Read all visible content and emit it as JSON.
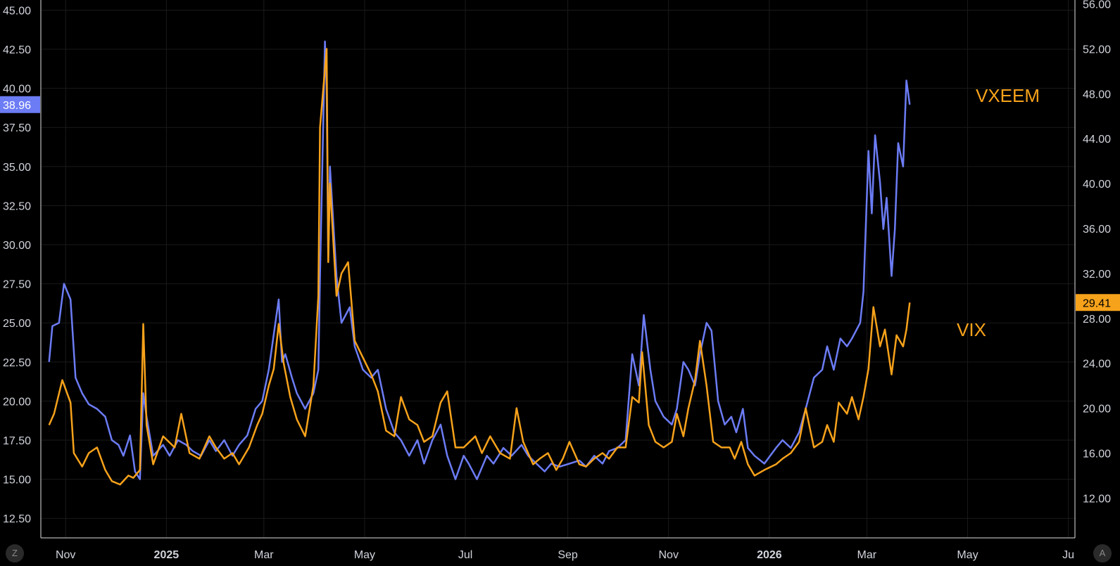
{
  "chart_data": {
    "type": "line",
    "title": "",
    "x_ticks": [
      "Nov",
      "2025",
      "Mar",
      "May",
      "Jul",
      "Sep",
      "Nov",
      "2026",
      "Mar",
      "May",
      "Ju"
    ],
    "left_axis": {
      "ticks": [
        "45.00",
        "42.50",
        "40.00",
        "37.50",
        "35.00",
        "32.50",
        "30.00",
        "27.50",
        "25.00",
        "22.50",
        "20.00",
        "17.50",
        "15.00",
        "12.50"
      ],
      "ylim": [
        11.25,
        45.65
      ]
    },
    "right_axis": {
      "ticks": [
        "56.00",
        "52.00",
        "48.00",
        "44.00",
        "40.00",
        "36.00",
        "32.00",
        "28.00",
        "24.00",
        "20.00",
        "16.00",
        "12.00"
      ],
      "ylim": [
        8.45,
        56.35
      ]
    },
    "series": [
      {
        "name": "VXEEM",
        "axis": "left",
        "color": "#6c7cf5",
        "last_value": "38.96",
        "points": [
          [
            "2024-10-22",
            22.5
          ],
          [
            "2024-10-24",
            24.8
          ],
          [
            "2024-10-28",
            25.0
          ],
          [
            "2024-10-31",
            27.5
          ],
          [
            "2024-11-04",
            26.5
          ],
          [
            "2024-11-07",
            21.5
          ],
          [
            "2024-11-11",
            20.5
          ],
          [
            "2024-11-15",
            19.8
          ],
          [
            "2024-11-20",
            19.5
          ],
          [
            "2024-11-25",
            19.0
          ],
          [
            "2024-11-29",
            17.5
          ],
          [
            "2024-12-03",
            17.2
          ],
          [
            "2024-12-06",
            16.5
          ],
          [
            "2024-12-10",
            17.8
          ],
          [
            "2024-12-13",
            15.5
          ],
          [
            "2024-12-16",
            15.0
          ],
          [
            "2024-12-18",
            20.5
          ],
          [
            "2024-12-20",
            19.0
          ],
          [
            "2024-12-24",
            16.5
          ],
          [
            "2024-12-30",
            17.2
          ],
          [
            "2025-01-03",
            16.5
          ],
          [
            "2025-01-08",
            17.5
          ],
          [
            "2025-01-13",
            17.2
          ],
          [
            "2025-01-17",
            16.8
          ],
          [
            "2025-01-22",
            16.5
          ],
          [
            "2025-01-27",
            17.5
          ],
          [
            "2025-01-31",
            16.8
          ],
          [
            "2025-02-05",
            17.5
          ],
          [
            "2025-02-10",
            16.5
          ],
          [
            "2025-02-14",
            17.2
          ],
          [
            "2025-02-19",
            17.8
          ],
          [
            "2025-02-24",
            19.5
          ],
          [
            "2025-02-28",
            20.0
          ],
          [
            "2025-03-04",
            22.0
          ],
          [
            "2025-03-06",
            23.5
          ],
          [
            "2025-03-10",
            26.5
          ],
          [
            "2025-03-12",
            22.5
          ],
          [
            "2025-03-14",
            23.0
          ],
          [
            "2025-03-18",
            21.5
          ],
          [
            "2025-03-21",
            20.5
          ],
          [
            "2025-03-26",
            19.5
          ],
          [
            "2025-03-31",
            20.5
          ],
          [
            "2025-04-03",
            22.0
          ],
          [
            "2025-04-04",
            28.0
          ],
          [
            "2025-04-07",
            43.0
          ],
          [
            "2025-04-08",
            40.0
          ],
          [
            "2025-04-09",
            29.0
          ],
          [
            "2025-04-10",
            35.0
          ],
          [
            "2025-04-14",
            28.0
          ],
          [
            "2025-04-17",
            25.0
          ],
          [
            "2025-04-22",
            26.0
          ],
          [
            "2025-04-25",
            23.5
          ],
          [
            "2025-04-30",
            22.0
          ],
          [
            "2025-05-05",
            21.5
          ],
          [
            "2025-05-09",
            22.0
          ],
          [
            "2025-05-14",
            19.5
          ],
          [
            "2025-05-19",
            18.0
          ],
          [
            "2025-05-23",
            17.5
          ],
          [
            "2025-05-28",
            16.5
          ],
          [
            "2025-06-02",
            17.5
          ],
          [
            "2025-06-06",
            16.0
          ],
          [
            "2025-06-11",
            17.5
          ],
          [
            "2025-06-16",
            18.5
          ],
          [
            "2025-06-20",
            16.5
          ],
          [
            "2025-06-25",
            15.0
          ],
          [
            "2025-06-30",
            16.5
          ],
          [
            "2025-07-03",
            16.0
          ],
          [
            "2025-07-08",
            15.0
          ],
          [
            "2025-07-14",
            16.5
          ],
          [
            "2025-07-18",
            16.0
          ],
          [
            "2025-07-24",
            17.0
          ],
          [
            "2025-07-29",
            16.5
          ],
          [
            "2025-08-04",
            17.2
          ],
          [
            "2025-08-08",
            16.5
          ],
          [
            "2025-08-13",
            16.0
          ],
          [
            "2025-08-18",
            15.5
          ],
          [
            "2025-08-22",
            16.0
          ],
          [
            "2025-08-27",
            15.8
          ],
          [
            "2025-09-02",
            16.0
          ],
          [
            "2025-09-08",
            16.2
          ],
          [
            "2025-09-12",
            15.8
          ],
          [
            "2025-09-17",
            16.5
          ],
          [
            "2025-09-22",
            16.0
          ],
          [
            "2025-09-26",
            16.8
          ],
          [
            "2025-10-01",
            17.0
          ],
          [
            "2025-10-06",
            17.5
          ],
          [
            "2025-10-10",
            23.0
          ],
          [
            "2025-10-14",
            21.0
          ],
          [
            "2025-10-17",
            25.5
          ],
          [
            "2025-10-21",
            22.0
          ],
          [
            "2025-10-24",
            20.0
          ],
          [
            "2025-10-29",
            19.0
          ],
          [
            "2025-11-03",
            18.5
          ],
          [
            "2025-11-06",
            19.5
          ],
          [
            "2025-11-10",
            22.5
          ],
          [
            "2025-11-13",
            22.0
          ],
          [
            "2025-11-17",
            21.0
          ],
          [
            "2025-11-20",
            23.0
          ],
          [
            "2025-11-24",
            25.0
          ],
          [
            "2025-11-27",
            24.5
          ],
          [
            "2025-12-01",
            20.0
          ],
          [
            "2025-12-05",
            18.5
          ],
          [
            "2025-12-09",
            19.0
          ],
          [
            "2025-12-12",
            18.0
          ],
          [
            "2025-12-16",
            19.5
          ],
          [
            "2025-12-19",
            17.0
          ],
          [
            "2025-12-23",
            16.5
          ],
          [
            "2025-12-29",
            16.0
          ],
          [
            "2026-01-05",
            17.0
          ],
          [
            "2026-01-09",
            17.5
          ],
          [
            "2026-01-14",
            17.0
          ],
          [
            "2026-01-19",
            18.0
          ],
          [
            "2026-01-23",
            19.5
          ],
          [
            "2026-01-28",
            21.5
          ],
          [
            "2026-02-02",
            22.0
          ],
          [
            "2026-02-05",
            23.5
          ],
          [
            "2026-02-09",
            22.0
          ],
          [
            "2026-02-13",
            24.0
          ],
          [
            "2026-02-17",
            23.5
          ],
          [
            "2026-02-20",
            24.0
          ],
          [
            "2026-02-25",
            25.0
          ],
          [
            "2026-02-27",
            27.0
          ],
          [
            "2026-03-02",
            36.0
          ],
          [
            "2026-03-04",
            32.0
          ],
          [
            "2026-03-06",
            37.0
          ],
          [
            "2026-03-09",
            34.0
          ],
          [
            "2026-03-11",
            31.0
          ],
          [
            "2026-03-13",
            33.0
          ],
          [
            "2026-03-16",
            28.0
          ],
          [
            "2026-03-18",
            31.0
          ],
          [
            "2026-03-20",
            36.5
          ],
          [
            "2026-03-23",
            35.0
          ],
          [
            "2026-03-25",
            40.5
          ],
          [
            "2026-03-27",
            38.96
          ]
        ]
      },
      {
        "name": "VIX",
        "axis": "right",
        "color": "#f7a21b",
        "last_value": "29.41",
        "points": [
          [
            "2024-10-22",
            18.5
          ],
          [
            "2024-10-25",
            19.5
          ],
          [
            "2024-10-30",
            22.5
          ],
          [
            "2024-11-04",
            20.5
          ],
          [
            "2024-11-06",
            16.0
          ],
          [
            "2024-11-11",
            14.8
          ],
          [
            "2024-11-15",
            16.0
          ],
          [
            "2024-11-20",
            16.5
          ],
          [
            "2024-11-25",
            14.5
          ],
          [
            "2024-11-29",
            13.5
          ],
          [
            "2024-12-04",
            13.2
          ],
          [
            "2024-12-09",
            14.0
          ],
          [
            "2024-12-12",
            13.8
          ],
          [
            "2024-12-16",
            14.5
          ],
          [
            "2024-12-18",
            27.5
          ],
          [
            "2024-12-20",
            18.5
          ],
          [
            "2024-12-24",
            15.0
          ],
          [
            "2024-12-30",
            17.5
          ],
          [
            "2025-01-06",
            16.5
          ],
          [
            "2025-01-10",
            19.5
          ],
          [
            "2025-01-15",
            16.0
          ],
          [
            "2025-01-21",
            15.5
          ],
          [
            "2025-01-27",
            17.5
          ],
          [
            "2025-01-31",
            16.5
          ],
          [
            "2025-02-05",
            15.5
          ],
          [
            "2025-02-10",
            16.0
          ],
          [
            "2025-02-14",
            15.0
          ],
          [
            "2025-02-20",
            16.5
          ],
          [
            "2025-02-25",
            18.5
          ],
          [
            "2025-02-28",
            19.5
          ],
          [
            "2025-03-04",
            22.0
          ],
          [
            "2025-03-07",
            23.5
          ],
          [
            "2025-03-10",
            27.5
          ],
          [
            "2025-03-13",
            24.0
          ],
          [
            "2025-03-17",
            21.0
          ],
          [
            "2025-03-21",
            19.0
          ],
          [
            "2025-03-26",
            17.5
          ],
          [
            "2025-03-31",
            22.0
          ],
          [
            "2025-04-03",
            30.0
          ],
          [
            "2025-04-04",
            45.0
          ],
          [
            "2025-04-08",
            52.0
          ],
          [
            "2025-04-09",
            33.0
          ],
          [
            "2025-04-10",
            40.0
          ],
          [
            "2025-04-14",
            30.0
          ],
          [
            "2025-04-17",
            32.0
          ],
          [
            "2025-04-21",
            33.0
          ],
          [
            "2025-04-25",
            26.0
          ],
          [
            "2025-04-30",
            24.5
          ],
          [
            "2025-05-05",
            23.0
          ],
          [
            "2025-05-09",
            21.5
          ],
          [
            "2025-05-14",
            18.0
          ],
          [
            "2025-05-19",
            17.5
          ],
          [
            "2025-05-23",
            21.0
          ],
          [
            "2025-05-28",
            19.0
          ],
          [
            "2025-06-02",
            18.5
          ],
          [
            "2025-06-06",
            17.0
          ],
          [
            "2025-06-11",
            17.5
          ],
          [
            "2025-06-16",
            20.5
          ],
          [
            "2025-06-20",
            21.5
          ],
          [
            "2025-06-25",
            16.5
          ],
          [
            "2025-06-30",
            16.5
          ],
          [
            "2025-07-07",
            17.5
          ],
          [
            "2025-07-11",
            16.0
          ],
          [
            "2025-07-16",
            17.5
          ],
          [
            "2025-07-22",
            16.0
          ],
          [
            "2025-07-28",
            15.5
          ],
          [
            "2025-08-01",
            20.0
          ],
          [
            "2025-08-05",
            17.0
          ],
          [
            "2025-08-11",
            15.0
          ],
          [
            "2025-08-15",
            15.5
          ],
          [
            "2025-08-20",
            16.0
          ],
          [
            "2025-08-25",
            14.5
          ],
          [
            "2025-08-29",
            15.5
          ],
          [
            "2025-09-02",
            17.0
          ],
          [
            "2025-09-08",
            15.0
          ],
          [
            "2025-09-12",
            14.8
          ],
          [
            "2025-09-17",
            15.5
          ],
          [
            "2025-09-22",
            16.0
          ],
          [
            "2025-09-26",
            15.5
          ],
          [
            "2025-10-01",
            16.5
          ],
          [
            "2025-10-06",
            16.5
          ],
          [
            "2025-10-10",
            21.0
          ],
          [
            "2025-10-14",
            20.5
          ],
          [
            "2025-10-16",
            25.0
          ],
          [
            "2025-10-20",
            18.5
          ],
          [
            "2025-10-24",
            17.0
          ],
          [
            "2025-10-29",
            16.5
          ],
          [
            "2025-11-03",
            17.0
          ],
          [
            "2025-11-06",
            19.5
          ],
          [
            "2025-11-10",
            17.5
          ],
          [
            "2025-11-13",
            20.0
          ],
          [
            "2025-11-17",
            22.5
          ],
          [
            "2025-11-20",
            26.0
          ],
          [
            "2025-11-24",
            22.0
          ],
          [
            "2025-11-28",
            17.0
          ],
          [
            "2025-12-03",
            16.5
          ],
          [
            "2025-12-08",
            16.5
          ],
          [
            "2025-12-11",
            15.5
          ],
          [
            "2025-12-15",
            17.0
          ],
          [
            "2025-12-19",
            15.0
          ],
          [
            "2025-12-23",
            14.0
          ],
          [
            "2025-12-29",
            14.5
          ],
          [
            "2026-01-05",
            15.0
          ],
          [
            "2026-01-09",
            15.5
          ],
          [
            "2026-01-14",
            16.0
          ],
          [
            "2026-01-19",
            17.0
          ],
          [
            "2026-01-23",
            20.0
          ],
          [
            "2026-01-28",
            16.5
          ],
          [
            "2026-02-02",
            17.0
          ],
          [
            "2026-02-05",
            18.5
          ],
          [
            "2026-02-09",
            17.0
          ],
          [
            "2026-02-12",
            20.5
          ],
          [
            "2026-02-17",
            19.5
          ],
          [
            "2026-02-20",
            21.0
          ],
          [
            "2026-02-24",
            19.0
          ],
          [
            "2026-02-27",
            21.0
          ],
          [
            "2026-03-02",
            23.5
          ],
          [
            "2026-03-05",
            29.0
          ],
          [
            "2026-03-09",
            25.5
          ],
          [
            "2026-03-12",
            27.0
          ],
          [
            "2026-03-16",
            23.0
          ],
          [
            "2026-03-19",
            26.5
          ],
          [
            "2026-03-23",
            25.5
          ],
          [
            "2026-03-25",
            27.0
          ],
          [
            "2026-03-27",
            29.41
          ]
        ]
      }
    ],
    "grid": true
  },
  "controls": {
    "left_button": "Z",
    "right_button": "A"
  }
}
